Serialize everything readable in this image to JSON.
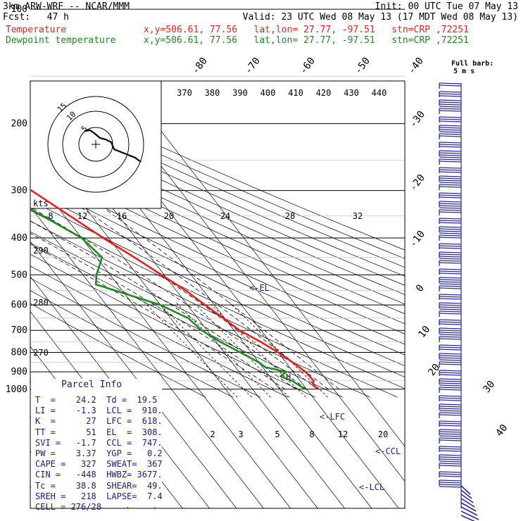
{
  "header": {
    "model": "3km ARW-WRF -- NCAR/MMM",
    "init": "Init: 00 UTC Tue 07 May 13",
    "fcst": "Fcst:   47 h",
    "valid": "Valid: 23 UTC Wed 08 May 13 (17 MDT Wed 08 May 13)",
    "temp_label": "Temperature",
    "dew_label": "Dewpoint temperature",
    "temp_loc": "x,y=506.61, 77.56   lat,lon= 27.77, -97.51   stn=CRP ,72251",
    "dew_loc": "x,y=506.61, 77.56   lat,lon= 27.77, -97.51   stn=CRP ,72251"
  },
  "colors": {
    "temperature": "#e8231f",
    "dewpoint": "#1f8a1f",
    "wind": "#2a2a9e",
    "parcel": "#1a1a8e",
    "grid": "#000000"
  },
  "barb_legend": {
    "title": "Full barb:",
    "value": "5 m s"
  },
  "hodograph": {
    "unit": "kts",
    "ring_labels": [
      "15",
      "10",
      "5"
    ]
  },
  "theta_labels": [
    "370",
    "380",
    "390",
    "400",
    "410",
    "420",
    "430",
    "440"
  ],
  "mixing_top_labels": [
    "8",
    "12",
    "16",
    "20",
    "24",
    "28",
    "32"
  ],
  "mixing_bottom_labels": [
    "2",
    "3",
    "5",
    "8",
    "12",
    "20"
  ],
  "isotherm_labels": [
    "-80",
    "-70",
    "-60",
    "-50",
    "-40",
    "-30",
    "-20",
    "-10",
    "0",
    "10",
    "20",
    "30",
    "40"
  ],
  "theta_e_labels": [
    "290",
    "280",
    "270"
  ],
  "level_markers": {
    "el": "<-EL",
    "lfc": "<-LFC",
    "ccl": "<-CCL",
    "lcl": "<-LCL"
  },
  "parcel_info": {
    "title": "Parcel Info",
    "rows": [
      "T  =    24.2  Td =  19.5",
      "LI =    -1.3  LCL =  910.",
      "K  =      27  LFC =  618.",
      "TT =      51  EL  =  308.",
      "SVI =   -1.7  CCL =  747.",
      "PW =    3.37  YGP =   0.2",
      "CAPE =   327  SWEAT=  367",
      "CIN =   -448  HWBZ= 3677.",
      "Tc =    38.8  SHEAR=  49.",
      "SREH =   218  LAPSE=  7.4",
      "CELL = 276/28"
    ]
  },
  "chart_data": {
    "type": "line",
    "title": "",
    "xlabel": "",
    "ylabel": "",
    "yscale": "log",
    "y_ticks": [
      100,
      200,
      300,
      400,
      500,
      600,
      700,
      800,
      900,
      1000
    ],
    "y_tick_labels": [
      "100",
      "200",
      "300",
      "400",
      "500",
      "600",
      "700",
      "800",
      "900",
      "1000"
    ],
    "ylim": [
      1000,
      100
    ],
    "series": [
      {
        "name": "Temperature",
        "values": [
          {
            "p": 1000,
            "t": 24.2
          },
          {
            "p": 975,
            "t": 23.5
          },
          {
            "p": 950,
            "t": 25.0
          },
          {
            "p": 900,
            "t": 24.5
          },
          {
            "p": 850,
            "t": 22.5
          },
          {
            "p": 800,
            "t": 20.0
          },
          {
            "p": 750,
            "t": 16.5
          },
          {
            "p": 700,
            "t": 12.0
          },
          {
            "p": 650,
            "t": 9.5
          },
          {
            "p": 600,
            "t": 6.5
          },
          {
            "p": 550,
            "t": 3.5
          },
          {
            "p": 500,
            "t": -1.0
          },
          {
            "p": 450,
            "t": -6.0
          },
          {
            "p": 400,
            "t": -12.0
          },
          {
            "p": 350,
            "t": -18.0
          },
          {
            "p": 300,
            "t": -25.0
          },
          {
            "p": 250,
            "t": -34.0
          },
          {
            "p": 200,
            "t": -46.0
          },
          {
            "p": 175,
            "t": -53.0
          },
          {
            "p": 150,
            "t": -59.0
          },
          {
            "p": 125,
            "t": -62.0
          },
          {
            "p": 100,
            "t": -65.0
          }
        ]
      },
      {
        "name": "Dewpoint temperature",
        "values": [
          {
            "p": 1000,
            "t": 19.5
          },
          {
            "p": 950,
            "t": 17.0
          },
          {
            "p": 925,
            "t": 14.0
          },
          {
            "p": 900,
            "t": 17.5
          },
          {
            "p": 875,
            "t": 11.0
          },
          {
            "p": 850,
            "t": 10.0
          },
          {
            "p": 800,
            "t": 6.0
          },
          {
            "p": 750,
            "t": 1.5
          },
          {
            "p": 700,
            "t": -2.0
          },
          {
            "p": 650,
            "t": -3.5
          },
          {
            "p": 600,
            "t": -10.0
          },
          {
            "p": 560,
            "t": -20.0
          },
          {
            "p": 530,
            "t": -28.0
          },
          {
            "p": 500,
            "t": -25.0
          },
          {
            "p": 450,
            "t": -18.0
          },
          {
            "p": 400,
            "t": -20.0
          },
          {
            "p": 350,
            "t": -28.0
          },
          {
            "p": 300,
            "t": -39.0
          },
          {
            "p": 250,
            "t": -52.0
          },
          {
            "p": 225,
            "t": -60.0
          },
          {
            "p": 200,
            "t": -60.0
          },
          {
            "p": 175,
            "t": -63.0
          },
          {
            "p": 150,
            "t": -70.0
          },
          {
            "p": 125,
            "t": -78.0
          },
          {
            "p": 100,
            "t": -83.0
          }
        ]
      }
    ]
  }
}
